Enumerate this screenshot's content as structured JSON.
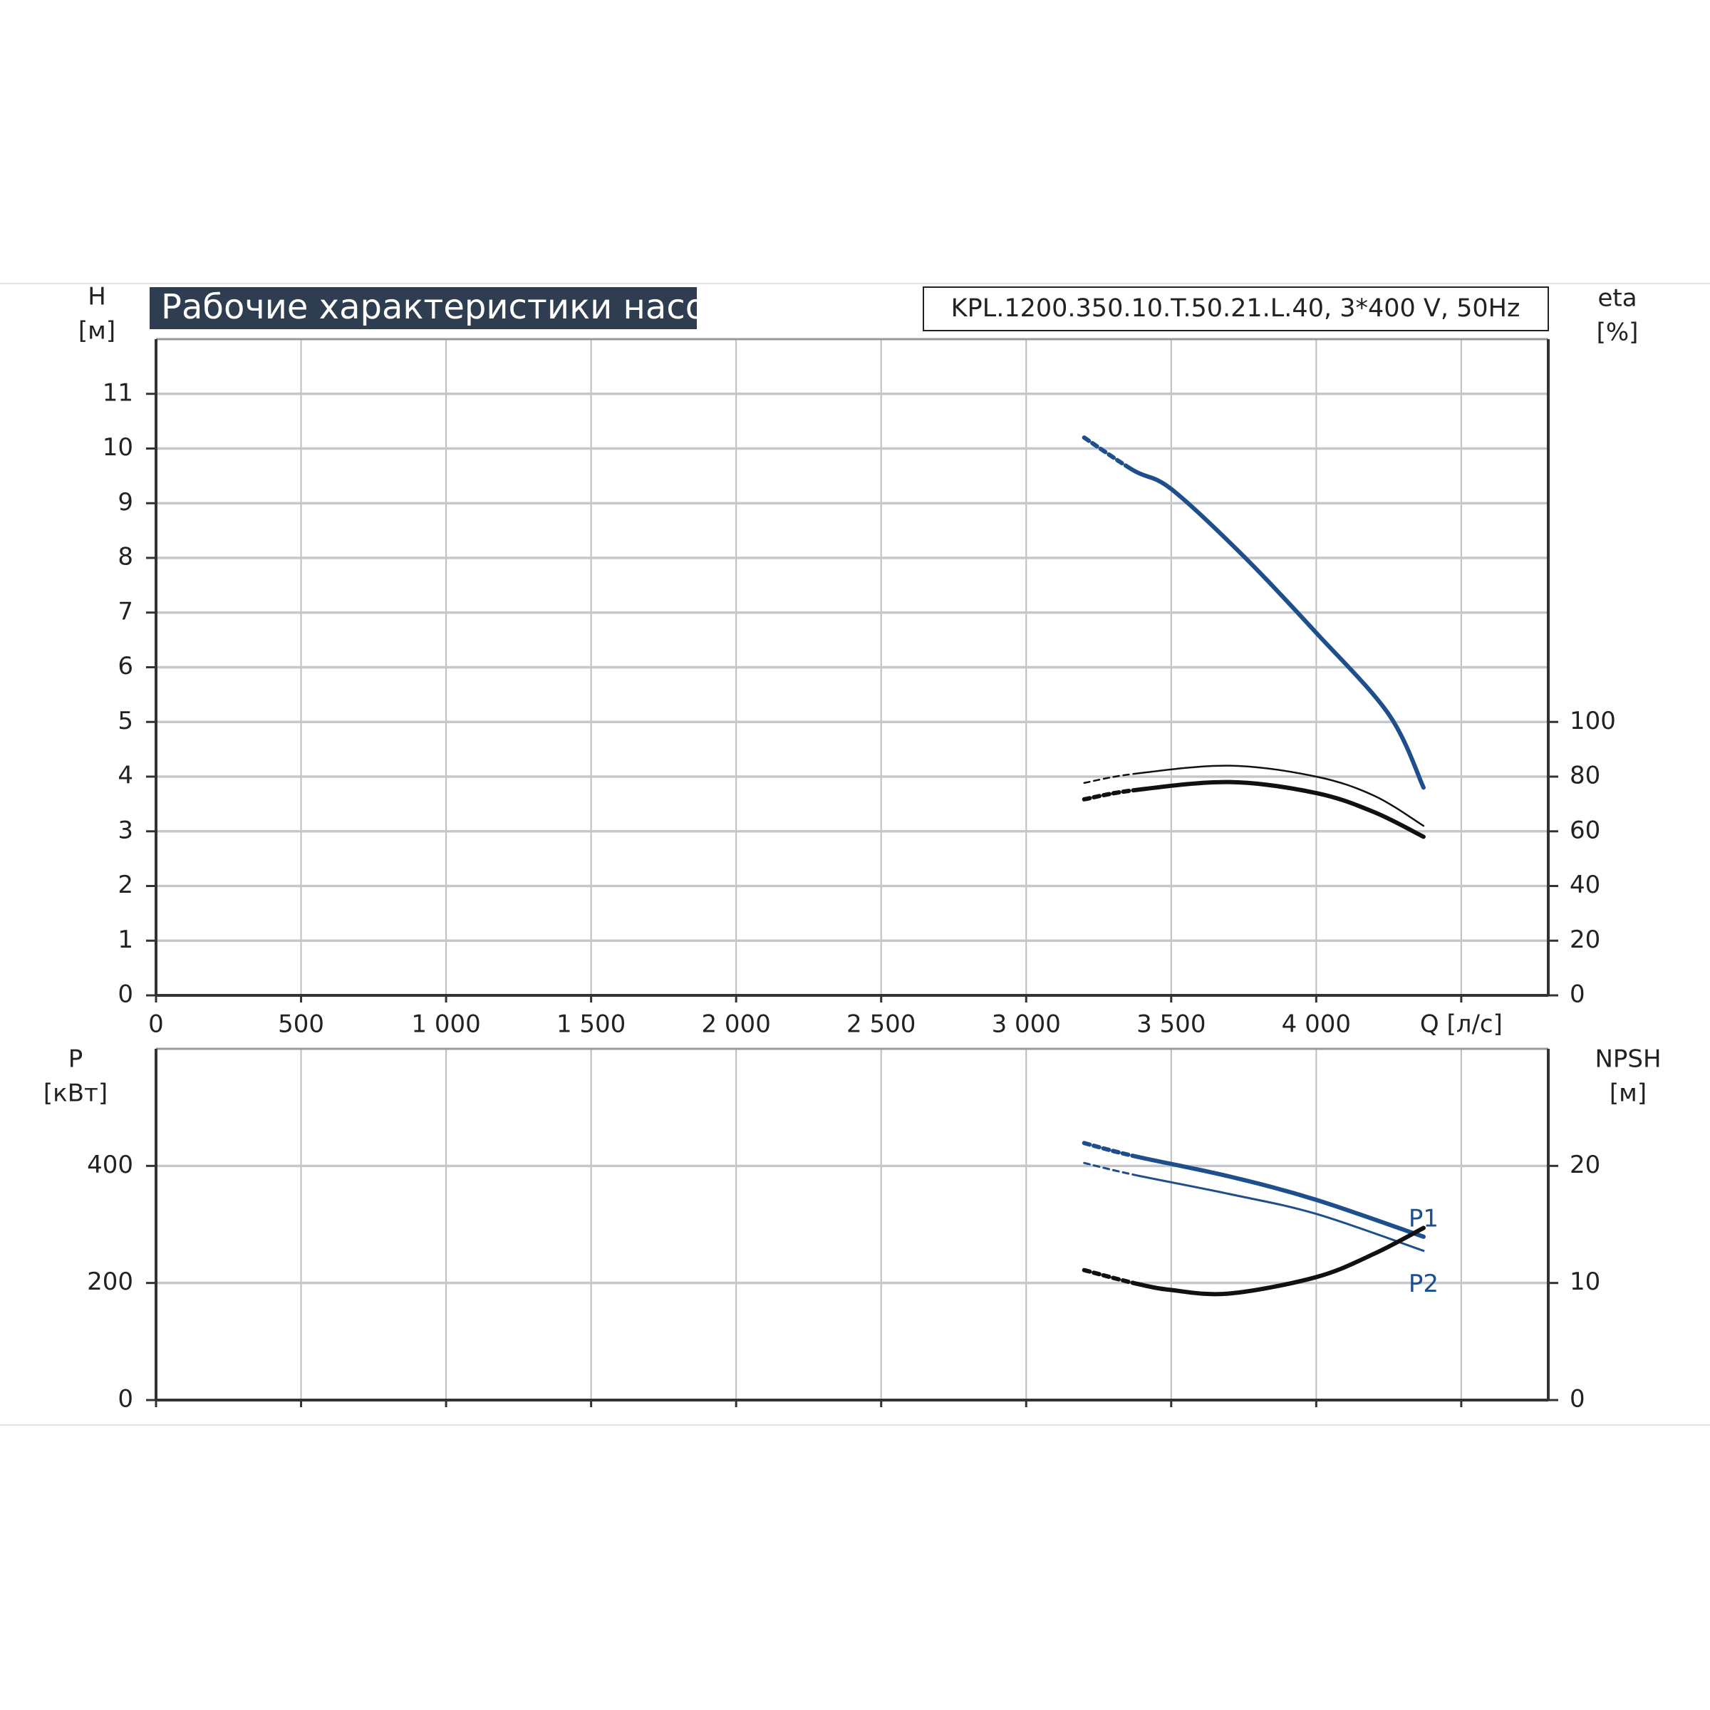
{
  "chart_data": [
    {
      "type": "line",
      "title": "Рабочие характеристики насоса",
      "subtitle": "KPL.1200.350.10.T.50.21.L.40, 3*400 V, 50Hz",
      "y_label": "H",
      "y_unit": "[м]",
      "y2_label": "eta",
      "y2_unit": "[%]",
      "xlim": [
        0,
        4800
      ],
      "xticks": [
        0,
        500,
        {
          "value": 1000,
          "label": "1 000"
        },
        {
          "value": 1500,
          "label": "1 500"
        },
        {
          "value": 2000,
          "label": "2 000"
        },
        {
          "value": 2500,
          "label": "2 500"
        },
        {
          "value": 3000,
          "label": "3 000"
        },
        {
          "value": 3500,
          "label": "3 500"
        },
        {
          "value": 4000,
          "label": "4 000"
        },
        {
          "value": 4500,
          "label": "Q [л/с]"
        }
      ],
      "ylim": [
        0,
        12
      ],
      "yticks": [
        0,
        1,
        2,
        3,
        4,
        5,
        6,
        7,
        8,
        9,
        10,
        11
      ],
      "y2lim": [
        0,
        240
      ],
      "y2ticks": [
        0,
        20,
        40,
        60,
        80,
        100
      ],
      "grid": true,
      "series": [
        {
          "color": "#1f4e8c",
          "width": 6,
          "dashed_segments": 1,
          "x": [
            3200,
            3370,
            3500,
            3750,
            4000,
            4250,
            4370
          ],
          "values": [
            10.2,
            9.6,
            9.26,
            8.03,
            6.63,
            5.14,
            3.8
          ]
        },
        {
          "color": "#111111",
          "width": 2.5,
          "dashed_segments": 1,
          "axis": "y2",
          "x": [
            3200,
            3370,
            3700,
            4000,
            4200,
            4370
          ],
          "values": [
            77.7,
            81,
            84,
            80,
            73,
            62
          ]
        },
        {
          "color": "#111111",
          "width": 6,
          "dashed_segments": 1,
          "axis": "y2",
          "x": [
            3200,
            3370,
            3700,
            4000,
            4200,
            4370
          ],
          "values": [
            71.7,
            75,
            78,
            74,
            67,
            58
          ]
        }
      ]
    },
    {
      "type": "line",
      "y_label": "P",
      "y_unit": "[кВт]",
      "y2_label": "NPSH",
      "y2_unit": "[м]",
      "xlim": [
        0,
        4800
      ],
      "xticks": [
        0,
        500,
        1000,
        1500,
        2000,
        2500,
        3000,
        3500,
        4000,
        4500
      ],
      "ylim": [
        0,
        600
      ],
      "yticks": [
        0,
        200,
        400
      ],
      "y2lim": [
        0,
        30
      ],
      "y2ticks": [
        0,
        10,
        20
      ],
      "grid": true,
      "series": [
        {
          "name": "P1",
          "color": "#1f4e8c",
          "width": 6,
          "dashed_segments": 1,
          "label_side": "above",
          "x": [
            3200,
            3370,
            3700,
            4000,
            4370
          ],
          "values": [
            439,
            417,
            382,
            342,
            279
          ]
        },
        {
          "name": "P2",
          "color": "#1f4e8c",
          "width": 3,
          "dashed_segments": 1,
          "label_side": "below",
          "x": [
            3200,
            3370,
            3700,
            4000,
            4370
          ],
          "values": [
            405,
            385,
            352,
            318,
            255
          ]
        },
        {
          "color": "#111111",
          "width": 6,
          "dashed_segments": 1,
          "axis": "y2",
          "x": [
            3200,
            3370,
            3500,
            3700,
            4000,
            4200,
            4370
          ],
          "values": [
            11.1,
            10.0,
            9.4,
            9.1,
            10.5,
            12.5,
            14.7
          ]
        }
      ]
    }
  ]
}
